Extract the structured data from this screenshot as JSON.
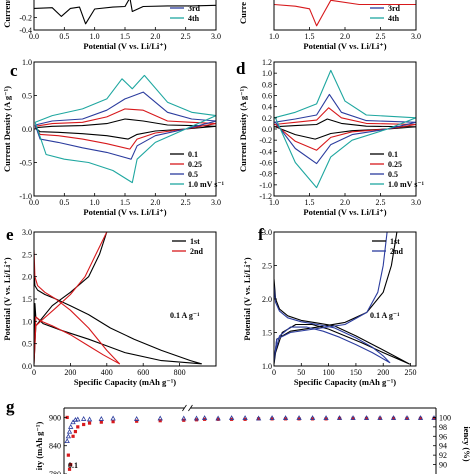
{
  "colors": {
    "black": "#000000",
    "red": "#d7191c",
    "blue": "#2b3c9e",
    "cyan": "#1fa7a0",
    "magenta": "#e0256e"
  },
  "chart_data": [
    {
      "id": "a",
      "letter": "",
      "type": "line",
      "xlabel": "Potential (V vs. Li/Li⁺)",
      "ylabel": "Current",
      "xlim": [
        0.0,
        3.0
      ],
      "ylim": [
        -0.4,
        0.15
      ],
      "xticks": [
        "0.0",
        "0.5",
        "1.0",
        "1.5",
        "2.0",
        "2.5",
        "3.0"
      ],
      "yticks": [
        "-0.2",
        "-0.4"
      ],
      "legend": [
        "3rd",
        "4th"
      ],
      "legend_colors": [
        "#2b3c9e",
        "#1fa7a0"
      ],
      "legend_placement": "bottom-right",
      "series": [
        {
          "name": "",
          "color": "#000000",
          "x": [
            0.0,
            0.3,
            0.45,
            0.6,
            0.75,
            0.85,
            1.0,
            1.3,
            1.5,
            1.58,
            1.62,
            1.8,
            2.2,
            2.6,
            3.0
          ],
          "y": [
            -0.05,
            -0.04,
            -0.18,
            -0.05,
            -0.03,
            -0.3,
            -0.06,
            -0.03,
            -0.02,
            0.12,
            -0.1,
            -0.02,
            -0.01,
            -0.01,
            0.0
          ]
        }
      ]
    },
    {
      "id": "b",
      "letter": "",
      "type": "line",
      "xlabel": "Potential (V vs. Li/Li⁺)",
      "ylabel": "Curre",
      "xlim": [
        1.0,
        3.0
      ],
      "ylim": [
        -0.3,
        0.1
      ],
      "xticks": [
        "1.0",
        "1.5",
        "2.0",
        "2.5",
        "3.0"
      ],
      "yticks": [],
      "legend": [
        "3rd",
        "4th"
      ],
      "legend_colors": [
        "#2b3c9e",
        "#1fa7a0"
      ],
      "legend_placement": "bottom-right",
      "series": [
        {
          "name": "",
          "color": "#d7191c",
          "x": [
            1.0,
            1.3,
            1.5,
            1.55,
            1.6,
            1.7,
            1.8,
            2.2,
            3.0
          ],
          "y": [
            0.0,
            -0.02,
            -0.05,
            -0.15,
            -0.25,
            -0.1,
            0.05,
            0.0,
            0.0
          ]
        }
      ]
    },
    {
      "id": "c",
      "letter": "c",
      "type": "line",
      "xlabel": "Potential (V vs. Li/Li⁺)",
      "ylabel": "Current Density (A g⁻¹)",
      "xlim": [
        0.0,
        3.0
      ],
      "ylim": [
        -1.0,
        1.0
      ],
      "xticks": [
        "0.0",
        "0.5",
        "1.0",
        "1.5",
        "2.0",
        "2.5",
        "3.0"
      ],
      "yticks": [
        "1.0",
        "0.5",
        "0.0",
        "-0.5",
        "-1.0"
      ],
      "legend": [
        "0.1",
        "0.25",
        "0.5",
        "1.0 mV s⁻¹"
      ],
      "legend_colors": [
        "#000000",
        "#d7191c",
        "#2b3c9e",
        "#1fa7a0"
      ],
      "legend_placement": "bottom-right",
      "series": [
        {
          "name": "0.1",
          "color": "#000000",
          "x": [
            0.02,
            0.3,
            0.8,
            1.2,
            1.5,
            1.8,
            2.2,
            2.6,
            3.0,
            2.5,
            2.0,
            1.7,
            1.55,
            1.2,
            0.8,
            0.4,
            0.1,
            0.02
          ],
          "y": [
            0.02,
            0.04,
            0.05,
            0.08,
            0.15,
            0.12,
            0.06,
            0.05,
            0.04,
            0.0,
            -0.03,
            -0.08,
            -0.15,
            -0.1,
            -0.07,
            -0.05,
            -0.04,
            0.02
          ]
        },
        {
          "name": "0.25",
          "color": "#d7191c",
          "x": [
            0.02,
            0.3,
            0.8,
            1.2,
            1.5,
            1.8,
            2.2,
            2.6,
            3.0,
            2.5,
            2.0,
            1.7,
            1.58,
            1.2,
            0.8,
            0.4,
            0.1,
            0.02
          ],
          "y": [
            0.04,
            0.08,
            0.1,
            0.18,
            0.3,
            0.28,
            0.12,
            0.1,
            0.08,
            0.0,
            -0.06,
            -0.15,
            -0.3,
            -0.22,
            -0.15,
            -0.1,
            -0.08,
            0.04
          ]
        },
        {
          "name": "0.5",
          "color": "#2b3c9e",
          "x": [
            0.02,
            0.3,
            0.8,
            1.2,
            1.5,
            1.8,
            2.2,
            2.6,
            3.0,
            2.5,
            2.0,
            1.7,
            1.6,
            1.2,
            0.8,
            0.4,
            0.1,
            0.02
          ],
          "y": [
            0.06,
            0.12,
            0.15,
            0.28,
            0.45,
            0.55,
            0.25,
            0.15,
            0.12,
            0.0,
            -0.1,
            -0.25,
            -0.45,
            -0.35,
            -0.28,
            -0.2,
            -0.15,
            0.06
          ]
        },
        {
          "name": "1.0 mV s⁻¹",
          "color": "#1fa7a0",
          "x": [
            0.02,
            0.3,
            0.8,
            1.2,
            1.45,
            1.62,
            1.82,
            2.2,
            2.6,
            3.0,
            2.5,
            2.0,
            1.7,
            1.62,
            1.3,
            0.9,
            0.5,
            0.2,
            0.02
          ],
          "y": [
            0.1,
            0.2,
            0.3,
            0.45,
            0.75,
            0.6,
            0.8,
            0.4,
            0.25,
            0.2,
            0.0,
            -0.2,
            -0.45,
            -0.8,
            -0.62,
            -0.5,
            -0.45,
            -0.38,
            0.1
          ]
        }
      ]
    },
    {
      "id": "d",
      "letter": "d",
      "type": "line",
      "xlabel": "Potential (V vs. Li/Li⁺)",
      "ylabel": "Current Density (A g⁻¹)",
      "xlim": [
        1.0,
        3.0
      ],
      "ylim": [
        -1.2,
        1.2
      ],
      "xticks": [
        "1.0",
        "1.5",
        "2.0",
        "2.5",
        "3.0"
      ],
      "yticks": [
        "1.2",
        "1.0",
        "0.8",
        "0.6",
        "0.4",
        "0.2",
        "0.0",
        "-0.2",
        "-0.4",
        "-0.6",
        "-0.8",
        "-1.0",
        "-1.2"
      ],
      "legend": [
        "0.1",
        "0.25",
        "0.5",
        "1.0 mV s⁻¹"
      ],
      "legend_colors": [
        "#000000",
        "#d7191c",
        "#2b3c9e",
        "#1fa7a0"
      ],
      "legend_placement": "bottom-right",
      "series": [
        {
          "name": "0.1",
          "color": "#000000",
          "x": [
            1.0,
            1.3,
            1.6,
            1.75,
            1.95,
            2.3,
            3.0,
            2.6,
            2.1,
            1.8,
            1.58,
            1.3,
            1.02
          ],
          "y": [
            0.04,
            0.06,
            0.08,
            0.18,
            0.1,
            0.05,
            0.04,
            0.0,
            -0.03,
            -0.08,
            -0.18,
            -0.1,
            0.04
          ]
        },
        {
          "name": "0.25",
          "color": "#d7191c",
          "x": [
            1.0,
            1.3,
            1.6,
            1.77,
            1.95,
            2.3,
            3.0,
            2.6,
            2.1,
            1.8,
            1.6,
            1.3,
            1.02
          ],
          "y": [
            0.08,
            0.12,
            0.16,
            0.38,
            0.2,
            0.1,
            0.08,
            0.0,
            -0.05,
            -0.15,
            -0.38,
            -0.22,
            0.08
          ]
        },
        {
          "name": "0.5",
          "color": "#2b3c9e",
          "x": [
            1.0,
            1.3,
            1.6,
            1.78,
            1.95,
            2.3,
            3.0,
            2.6,
            2.1,
            1.8,
            1.6,
            1.3,
            1.02
          ],
          "y": [
            0.12,
            0.18,
            0.25,
            0.62,
            0.3,
            0.15,
            0.12,
            0.0,
            -0.1,
            -0.28,
            -0.62,
            -0.35,
            0.12
          ]
        },
        {
          "name": "1.0 mV s⁻¹",
          "color": "#1fa7a0",
          "x": [
            1.0,
            1.3,
            1.6,
            1.8,
            2.0,
            2.3,
            3.0,
            2.6,
            2.1,
            1.8,
            1.6,
            1.3,
            1.02
          ],
          "y": [
            0.2,
            0.3,
            0.45,
            1.05,
            0.5,
            0.25,
            0.2,
            0.0,
            -0.2,
            -0.5,
            -1.05,
            -0.6,
            0.2
          ]
        }
      ]
    },
    {
      "id": "e",
      "letter": "e",
      "type": "line",
      "xlabel": "Specific Capacity (mAh g⁻¹)",
      "ylabel": "Potential (V vs. Li/Li⁺)",
      "xlim": [
        0,
        1000
      ],
      "ylim": [
        0.0,
        3.0
      ],
      "xticks": [
        "0",
        "200",
        "400",
        "600",
        "800"
      ],
      "yticks": [
        "0.0",
        "0.5",
        "1.0",
        "1.5",
        "2.0",
        "2.5",
        "3.0"
      ],
      "legend": [
        "1st",
        "2nd"
      ],
      "legend_colors": [
        "#000000",
        "#d7191c"
      ],
      "legend_placement": "top-right",
      "annotation": "0.1 A g⁻¹",
      "series": [
        {
          "name": "1st",
          "color": "#000000",
          "x": [
            0,
            5,
            20,
            60,
            120,
            200,
            300,
            420,
            550,
            700,
            860,
            920,
            920,
            700,
            500,
            400,
            300,
            150,
            50,
            10,
            5,
            0,
            10,
            40,
            100,
            200,
            300,
            360,
            400
          ],
          "y": [
            2.1,
            1.8,
            1.7,
            1.6,
            1.5,
            1.35,
            1.15,
            0.85,
            0.6,
            0.35,
            0.12,
            0.05,
            0.05,
            0.12,
            0.3,
            0.45,
            0.6,
            0.8,
            0.95,
            1.1,
            1.4,
            0.05,
            0.9,
            1.05,
            1.35,
            1.65,
            2.0,
            2.5,
            3.0
          ]
        },
        {
          "name": "2nd",
          "color": "#d7191c",
          "x": [
            0,
            5,
            20,
            60,
            120,
            200,
            300,
            400,
            470,
            470,
            380,
            300,
            200,
            100,
            40,
            10,
            0,
            10,
            50,
            120,
            200,
            280,
            340,
            400
          ],
          "y": [
            2.6,
            2.0,
            1.8,
            1.65,
            1.5,
            1.25,
            0.85,
            0.35,
            0.05,
            0.05,
            0.25,
            0.45,
            0.7,
            0.9,
            1.0,
            1.1,
            0.05,
            0.9,
            1.05,
            1.3,
            1.6,
            2.0,
            2.5,
            3.0
          ]
        }
      ]
    },
    {
      "id": "f",
      "letter": "f",
      "type": "line",
      "xlabel": "Specific Capacity (mAh g⁻¹)",
      "ylabel": "Potential (V vs. Li/Li⁺)",
      "xlim": [
        0,
        260
      ],
      "ylim": [
        1.0,
        3.0
      ],
      "xticks": [
        "0",
        "50",
        "100",
        "150",
        "200",
        "250"
      ],
      "yticks": [
        "1.0",
        "1.5",
        "2.0",
        "2.5",
        "3.0"
      ],
      "legend": [
        "1st",
        "2nd"
      ],
      "legend_colors": [
        "#000000",
        "#2b3c9e"
      ],
      "legend_placement": "top-right",
      "annotation": "0.1 A g⁻¹",
      "series": [
        {
          "name": "1st",
          "color": "#000000",
          "x": [
            0,
            3,
            10,
            25,
            50,
            80,
            110,
            150,
            190,
            220,
            248,
            248,
            200,
            160,
            130,
            100,
            70,
            40,
            15,
            3,
            0,
            5,
            30,
            80,
            130,
            170,
            200,
            215,
            225
          ],
          "y": [
            2.3,
            2.0,
            1.85,
            1.75,
            1.68,
            1.64,
            1.6,
            1.45,
            1.28,
            1.15,
            1.03,
            1.03,
            1.2,
            1.35,
            1.45,
            1.55,
            1.62,
            1.62,
            1.5,
            1.2,
            1.03,
            1.4,
            1.52,
            1.58,
            1.65,
            1.8,
            2.1,
            2.5,
            3.0
          ]
        },
        {
          "name": "2nd",
          "color": "#2b3c9e",
          "x": [
            0,
            3,
            10,
            25,
            50,
            80,
            110,
            150,
            180,
            200,
            212,
            212,
            180,
            150,
            120,
            90,
            60,
            30,
            10,
            2,
            0,
            5,
            30,
            80,
            130,
            170,
            190,
            200,
            207
          ],
          "y": [
            2.2,
            1.95,
            1.82,
            1.72,
            1.66,
            1.62,
            1.57,
            1.42,
            1.28,
            1.15,
            1.05,
            1.05,
            1.2,
            1.32,
            1.43,
            1.52,
            1.58,
            1.58,
            1.45,
            1.2,
            1.05,
            1.4,
            1.5,
            1.56,
            1.62,
            1.8,
            2.1,
            2.5,
            3.0
          ]
        }
      ]
    },
    {
      "id": "g",
      "letter": "g",
      "type": "scatter",
      "ylabel": "ity (mAh g⁻¹)",
      "y2label": "iency (%)",
      "ylim": [
        780,
        920
      ],
      "y2lim": [
        88,
        102
      ],
      "yticks": [
        "900",
        "840",
        "780"
      ],
      "y2ticks": [
        "100",
        "98",
        "96",
        "94",
        "92",
        "90"
      ],
      "annotation": "0.1",
      "series": [
        {
          "name": "",
          "color": "#d7191c",
          "x": [
            1,
            2,
            3,
            4,
            6,
            8,
            10,
            15,
            20,
            30,
            40,
            60,
            80,
            100,
            120,
            150,
            200,
            250,
            300,
            350,
            400,
            450,
            500,
            550,
            600,
            650,
            700,
            750,
            800,
            850,
            900,
            950,
            1000
          ],
          "y": [
            900,
            820,
            790,
            800,
            860,
            870,
            880,
            885,
            888,
            890,
            891,
            892,
            893,
            894,
            895,
            896,
            896,
            896,
            896,
            897,
            897,
            897,
            897,
            897,
            897,
            898,
            898,
            898,
            898,
            898,
            898,
            898,
            898
          ]
        },
        {
          "name": "",
          "color": "#2b3c9e",
          "x": [
            1,
            2,
            3,
            4,
            6,
            8,
            10,
            15,
            20,
            30,
            40,
            60,
            80,
            100,
            120,
            150,
            200,
            250,
            300,
            350,
            400,
            450,
            500,
            550,
            600,
            650,
            700,
            750,
            800,
            850,
            900,
            950,
            1000
          ],
          "y": [
            95,
            96,
            97,
            98,
            99,
            99.5,
            99.6,
            99.7,
            99.6,
            99.7,
            99.8,
            99.7,
            99.8,
            99.8,
            99.8,
            99.9,
            99.8,
            99.9,
            99.9,
            99.8,
            99.9,
            99.9,
            99.9,
            99.9,
            99.9,
            99.9,
            99.9,
            99.9,
            99.9,
            99.9,
            99.9,
            99.9,
            99.9
          ]
        }
      ]
    }
  ]
}
